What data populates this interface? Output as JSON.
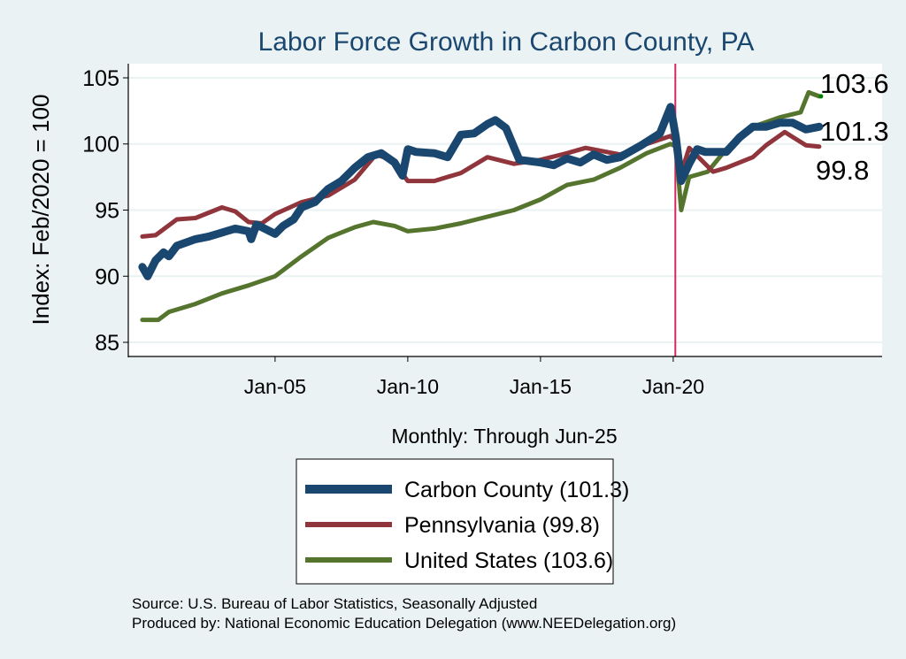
{
  "chart_data": {
    "type": "line",
    "title": "Labor Force Growth in Carbon  County, PA",
    "xlabel": "Monthly: Through Jun-25",
    "ylabel": "Index: Feb/2020 = 100",
    "xlim": [
      1999.47,
      2027.87
    ],
    "ylim": [
      83.93,
      106.07
    ],
    "x_ticks": [
      {
        "x": 2005,
        "label": "Jan-05"
      },
      {
        "x": 2010,
        "label": "Jan-10"
      },
      {
        "x": 2015,
        "label": "Jan-15"
      },
      {
        "x": 2020,
        "label": "Jan-20"
      }
    ],
    "y_ticks": [
      85,
      90,
      95,
      100,
      105
    ],
    "grid": true,
    "reference_line_x": 2020.08,
    "reference_line_color": "#d6275f",
    "legend_placement": "bottom",
    "end_labels": [
      "103.6",
      "101.3",
      "99.8"
    ],
    "series": [
      {
        "name": "Carbon  County (101.3)",
        "color": "#1a476f",
        "width": 9,
        "points": [
          [
            2000,
            90.7
          ],
          [
            2000.2,
            90.0
          ],
          [
            2000.5,
            91.2
          ],
          [
            2000.8,
            91.8
          ],
          [
            2001,
            91.5
          ],
          [
            2001.3,
            92.3
          ],
          [
            2002,
            92.8
          ],
          [
            2002.5,
            93.0
          ],
          [
            2003,
            93.3
          ],
          [
            2003.5,
            93.6
          ],
          [
            2004,
            93.4
          ],
          [
            2004.1,
            92.8
          ],
          [
            2004.3,
            93.9
          ],
          [
            2004.8,
            93.4
          ],
          [
            2005,
            93.2
          ],
          [
            2005.3,
            93.8
          ],
          [
            2005.7,
            94.3
          ],
          [
            2006,
            95.2
          ],
          [
            2006.5,
            95.6
          ],
          [
            2007,
            96.6
          ],
          [
            2007.5,
            97.2
          ],
          [
            2008,
            98.2
          ],
          [
            2008.5,
            99.0
          ],
          [
            2009,
            99.3
          ],
          [
            2009.5,
            98.6
          ],
          [
            2009.8,
            97.6
          ],
          [
            2010,
            99.6
          ],
          [
            2010.3,
            99.4
          ],
          [
            2011,
            99.3
          ],
          [
            2011.5,
            99.0
          ],
          [
            2012,
            100.7
          ],
          [
            2012.5,
            100.8
          ],
          [
            2013,
            101.5
          ],
          [
            2013.3,
            101.8
          ],
          [
            2013.7,
            101.2
          ],
          [
            2014.2,
            98.8
          ],
          [
            2015,
            98.6
          ],
          [
            2015.5,
            98.4
          ],
          [
            2016,
            98.9
          ],
          [
            2016.5,
            98.6
          ],
          [
            2017,
            99.2
          ],
          [
            2017.5,
            98.8
          ],
          [
            2018,
            99.0
          ],
          [
            2018.8,
            99.9
          ],
          [
            2019.5,
            100.8
          ],
          [
            2019.9,
            102.8
          ],
          [
            2020.1,
            100.5
          ],
          [
            2020.3,
            97.2
          ],
          [
            2020.6,
            98.5
          ],
          [
            2020.9,
            99.6
          ],
          [
            2021.2,
            99.4
          ],
          [
            2022,
            99.4
          ],
          [
            2022.5,
            100.5
          ],
          [
            2023,
            101.3
          ],
          [
            2023.5,
            101.3
          ],
          [
            2024,
            101.6
          ],
          [
            2024.5,
            101.6
          ],
          [
            2025,
            101.1
          ],
          [
            2025.5,
            101.3
          ]
        ]
      },
      {
        "name": "Pennsylvania (99.8)",
        "color": "#90353b",
        "width": 5,
        "points": [
          [
            2000,
            93.0
          ],
          [
            2000.5,
            93.1
          ],
          [
            2001.3,
            94.3
          ],
          [
            2002,
            94.4
          ],
          [
            2003,
            95.2
          ],
          [
            2003.5,
            94.9
          ],
          [
            2004,
            94.1
          ],
          [
            2004.5,
            94.0
          ],
          [
            2005,
            94.7
          ],
          [
            2006,
            95.6
          ],
          [
            2007,
            96.1
          ],
          [
            2008,
            97.3
          ],
          [
            2008.8,
            99.2
          ],
          [
            2009.4,
            98.8
          ],
          [
            2010,
            97.2
          ],
          [
            2011,
            97.2
          ],
          [
            2012,
            97.8
          ],
          [
            2013,
            99.0
          ],
          [
            2014,
            98.5
          ],
          [
            2015,
            98.8
          ],
          [
            2016,
            99.3
          ],
          [
            2016.7,
            99.7
          ],
          [
            2018,
            99.2
          ],
          [
            2019,
            100.0
          ],
          [
            2019.9,
            100.6
          ],
          [
            2020.1,
            100.2
          ],
          [
            2020.3,
            97.8
          ],
          [
            2020.6,
            99.7
          ],
          [
            2021.5,
            97.9
          ],
          [
            2022,
            98.2
          ],
          [
            2023,
            99.0
          ],
          [
            2023.5,
            99.9
          ],
          [
            2024.2,
            100.9
          ],
          [
            2025,
            99.9
          ],
          [
            2025.5,
            99.8
          ]
        ]
      },
      {
        "name": "United States (103.6)",
        "color": "#55752f",
        "width": 5,
        "points": [
          [
            2000,
            86.7
          ],
          [
            2000.6,
            86.7
          ],
          [
            2001,
            87.3
          ],
          [
            2002,
            87.9
          ],
          [
            2003,
            88.7
          ],
          [
            2004,
            89.3
          ],
          [
            2005,
            90.0
          ],
          [
            2006,
            91.5
          ],
          [
            2007,
            92.9
          ],
          [
            2008,
            93.7
          ],
          [
            2008.7,
            94.1
          ],
          [
            2009.5,
            93.8
          ],
          [
            2010,
            93.4
          ],
          [
            2011,
            93.6
          ],
          [
            2012,
            94.0
          ],
          [
            2013,
            94.5
          ],
          [
            2014,
            95.0
          ],
          [
            2015,
            95.8
          ],
          [
            2016,
            96.9
          ],
          [
            2017,
            97.3
          ],
          [
            2018,
            98.2
          ],
          [
            2019,
            99.3
          ],
          [
            2019.9,
            100.0
          ],
          [
            2020.1,
            99.8
          ],
          [
            2020.3,
            95.0
          ],
          [
            2020.6,
            97.5
          ],
          [
            2021.3,
            97.9
          ],
          [
            2022,
            99.6
          ],
          [
            2023,
            101.3
          ],
          [
            2024,
            102.0
          ],
          [
            2024.8,
            102.4
          ],
          [
            2025.1,
            103.9
          ],
          [
            2025.5,
            103.6
          ]
        ]
      }
    ]
  },
  "footer": {
    "source": "Source: U.S. Bureau of Labor Statistics, Seasonally Adjusted",
    "produced_by": "Produced by: National Economic Education Delegation (www.NEEDelegation.org)"
  },
  "colors": {
    "background": "#eaf2f3",
    "title": "#1a476f",
    "grid": "#eaf2f3"
  }
}
